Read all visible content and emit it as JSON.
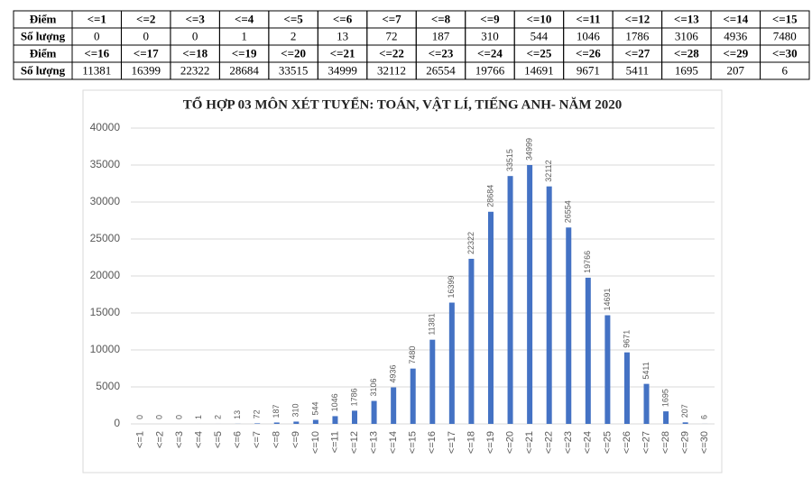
{
  "table": {
    "header_label": "Điểm",
    "count_label": "Số lượng"
  },
  "chart_data": {
    "type": "bar",
    "title": "TỔ HỢP 03 MÔN XÉT TUYỂN: TOÁN, VẬT LÍ, TIẾNG ANH- NĂM 2020",
    "categories": [
      "<=1",
      "<=2",
      "<=3",
      "<=4",
      "<=5",
      "<=6",
      "<=7",
      "<=8",
      "<=9",
      "<=10",
      "<=11",
      "<=12",
      "<=13",
      "<=14",
      "<=15",
      "<=16",
      "<=17",
      "<=18",
      "<=19",
      "<=20",
      "<=21",
      "<=22",
      "<=23",
      "<=24",
      "<=25",
      "<=26",
      "<=27",
      "<=28",
      "<=29",
      "<=30"
    ],
    "values": [
      0,
      0,
      0,
      1,
      2,
      13,
      72,
      187,
      310,
      544,
      1046,
      1786,
      3106,
      4936,
      7480,
      11381,
      16399,
      22322,
      28684,
      33515,
      34999,
      32112,
      26554,
      19766,
      14691,
      9671,
      5411,
      1695,
      207,
      6
    ],
    "color": "#4472c4",
    "ylim": [
      0,
      40000
    ],
    "yticks": [
      0,
      5000,
      10000,
      15000,
      20000,
      25000,
      30000,
      35000,
      40000
    ],
    "grid": true
  }
}
